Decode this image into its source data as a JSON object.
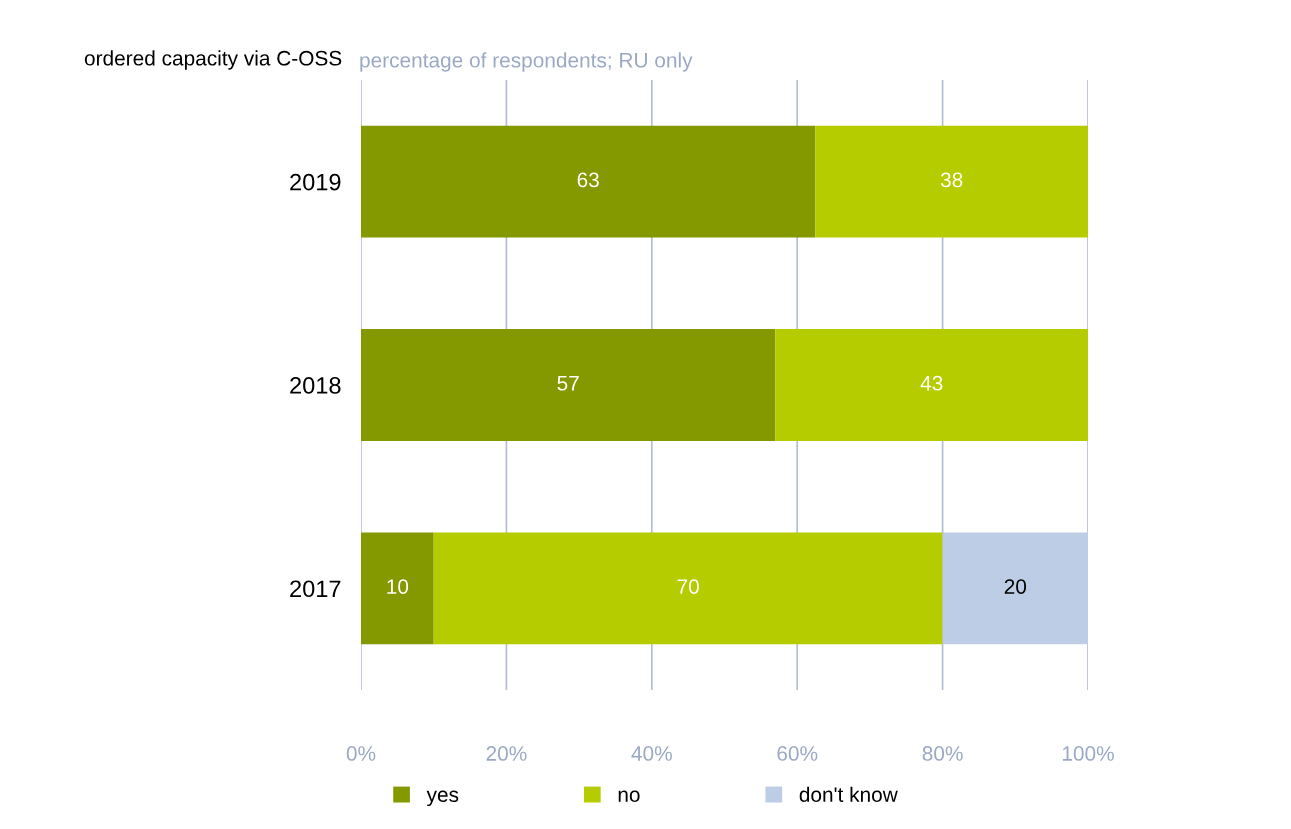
{
  "chart_data": {
    "type": "bar",
    "orientation": "horizontal",
    "stacked": true,
    "title": "ordered capacity via C-OSS",
    "subtitle": "percentage of respondents; RU only",
    "categories": [
      "2019",
      "2018",
      "2017"
    ],
    "series": [
      {
        "name": "yes",
        "color": "#849900",
        "values": [
          62.5,
          57,
          10
        ],
        "value_labels": [
          "63",
          "57",
          "10"
        ]
      },
      {
        "name": "no",
        "color": "#b5cc00",
        "values": [
          37.5,
          43,
          70
        ],
        "value_labels": [
          "38",
          "43",
          "70"
        ]
      },
      {
        "name": "don't know",
        "color": "#bdcde6",
        "values": [
          null,
          null,
          20
        ],
        "value_labels": [
          null,
          null,
          "20"
        ]
      }
    ],
    "xlim": [
      0,
      100
    ],
    "xticks": [
      {
        "value": 0,
        "label": "0%"
      },
      {
        "value": 20,
        "label": "20%"
      },
      {
        "value": 40,
        "label": "40%"
      },
      {
        "value": 60,
        "label": "60%"
      },
      {
        "value": 80,
        "label": "80%"
      },
      {
        "value": 100,
        "label": "100%"
      }
    ],
    "grid": "x",
    "legend": "bottom"
  }
}
